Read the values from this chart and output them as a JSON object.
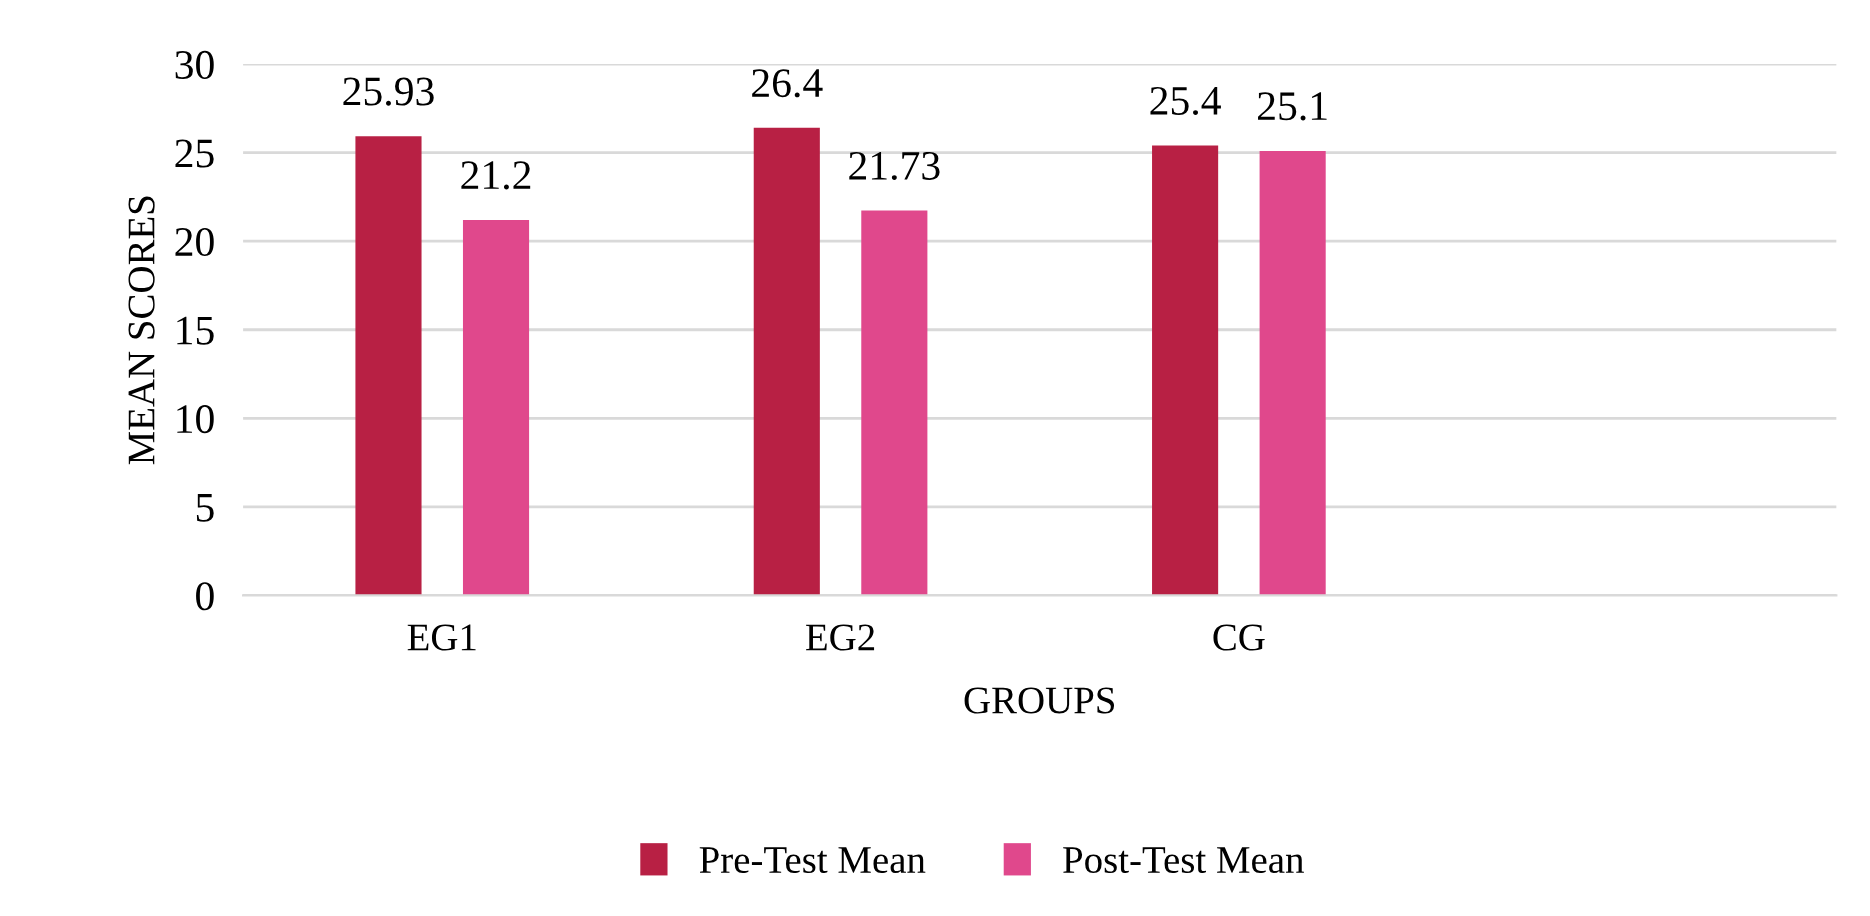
{
  "chart_data": {
    "type": "bar",
    "xlabel": "GROUPS",
    "ylabel": "MEAN SCORES",
    "categories": [
      "EG1",
      "EG2",
      "CG",
      null
    ],
    "series": [
      {
        "name": "Pre-Test Mean",
        "color": "#b82044",
        "values": [
          25.93,
          26.4,
          25.4,
          null
        ]
      },
      {
        "name": "Post-Test Mean",
        "color": "#e0488c",
        "values": [
          21.2,
          21.73,
          25.1,
          null
        ]
      }
    ],
    "ylim": [
      0,
      30
    ],
    "yticks": [
      0,
      5,
      10,
      15,
      20,
      25,
      30
    ],
    "grid": "y",
    "legend": "bottom",
    "data_labels": true
  }
}
